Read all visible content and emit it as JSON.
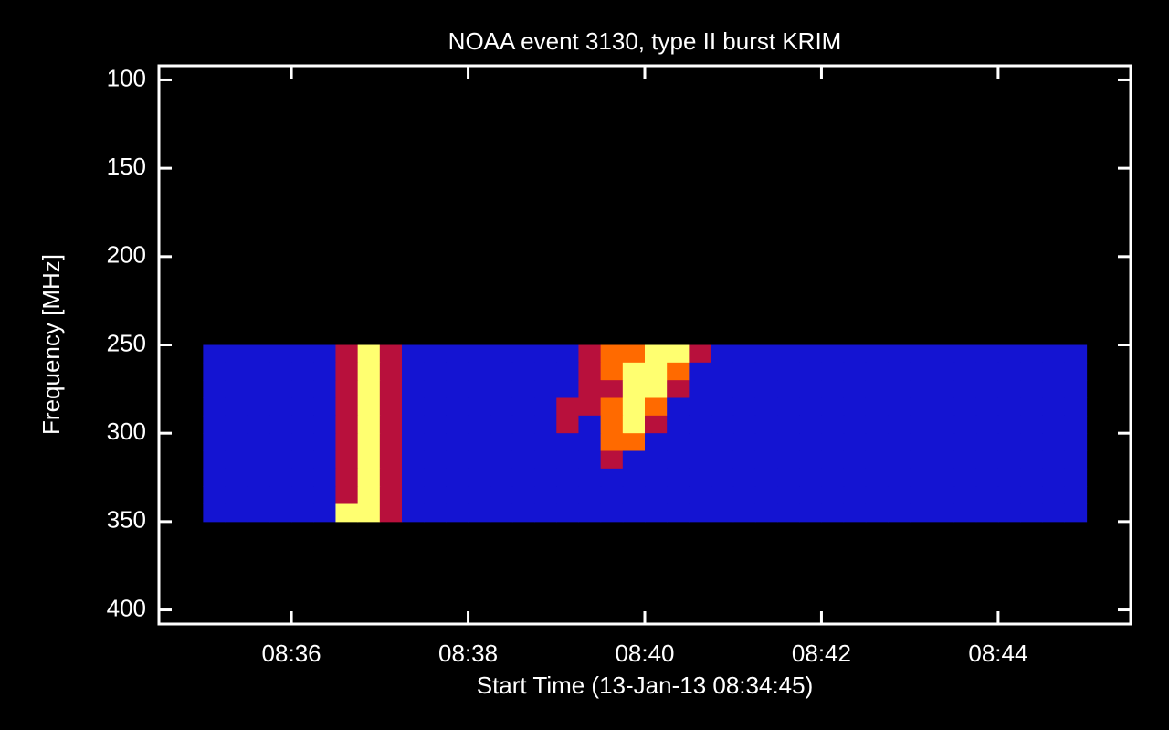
{
  "chart_data": {
    "type": "heatmap",
    "title": "NOAA event 3130, type II burst KRIM",
    "x_label": "Start Time (13-Jan-13 08:34:45)",
    "y_label": "Frequency [MHz]",
    "xlim": [
      34.5,
      45.5
    ],
    "xticks": [
      {
        "value": 36,
        "label": "08:36"
      },
      {
        "value": 38,
        "label": "08:38"
      },
      {
        "value": 40,
        "label": "08:40"
      },
      {
        "value": 42,
        "label": "08:42"
      },
      {
        "value": 44,
        "label": "08:44"
      }
    ],
    "ylim": [
      92,
      408
    ],
    "y_inverted": true,
    "yticks": [
      100,
      150,
      200,
      250,
      300,
      350,
      400
    ],
    "x_bins": [
      35,
      35.25,
      35.5,
      35.75,
      36,
      36.25,
      36.5,
      36.75,
      37,
      37.25,
      37.5,
      37.75,
      38,
      38.25,
      38.5,
      38.75,
      39,
      39.25,
      39.5,
      39.75,
      40,
      40.25,
      40.5,
      40.75,
      41,
      41.25,
      41.5,
      41.75,
      42,
      42.25,
      42.5,
      42.75,
      43,
      43.25,
      43.5,
      43.75,
      44,
      44.25,
      44.5,
      44.75,
      45
    ],
    "y_bins": [
      250,
      260,
      270,
      280,
      290,
      300,
      310,
      320,
      330,
      340,
      350
    ],
    "colors": [
      "#1414d2",
      "#b8103c",
      "#ff6a00",
      "#ffff70"
    ],
    "values": [
      [
        0,
        0,
        0,
        0,
        0,
        0,
        1,
        3,
        1,
        0,
        0,
        0,
        0,
        0,
        0,
        0,
        0,
        1,
        2,
        2,
        3,
        3,
        1,
        0,
        0,
        0,
        0,
        0,
        0,
        0,
        0,
        0,
        0,
        0,
        0,
        0,
        0,
        0,
        0,
        0
      ],
      [
        0,
        0,
        0,
        0,
        0,
        0,
        1,
        3,
        1,
        0,
        0,
        0,
        0,
        0,
        0,
        0,
        0,
        1,
        2,
        3,
        3,
        2,
        0,
        0,
        0,
        0,
        0,
        0,
        0,
        0,
        0,
        0,
        0,
        0,
        0,
        0,
        0,
        0,
        0,
        0
      ],
      [
        0,
        0,
        0,
        0,
        0,
        0,
        1,
        3,
        1,
        0,
        0,
        0,
        0,
        0,
        0,
        0,
        0,
        1,
        1,
        3,
        3,
        1,
        0,
        0,
        0,
        0,
        0,
        0,
        0,
        0,
        0,
        0,
        0,
        0,
        0,
        0,
        0,
        0,
        0,
        0
      ],
      [
        0,
        0,
        0,
        0,
        0,
        0,
        1,
        3,
        1,
        0,
        0,
        0,
        0,
        0,
        0,
        0,
        1,
        1,
        2,
        3,
        2,
        0,
        0,
        0,
        0,
        0,
        0,
        0,
        0,
        0,
        0,
        0,
        0,
        0,
        0,
        0,
        0,
        0,
        0,
        0
      ],
      [
        0,
        0,
        0,
        0,
        0,
        0,
        1,
        3,
        1,
        0,
        0,
        0,
        0,
        0,
        0,
        0,
        1,
        0,
        2,
        3,
        1,
        0,
        0,
        0,
        0,
        0,
        0,
        0,
        0,
        0,
        0,
        0,
        0,
        0,
        0,
        0,
        0,
        0,
        0,
        0
      ],
      [
        0,
        0,
        0,
        0,
        0,
        0,
        1,
        3,
        1,
        0,
        0,
        0,
        0,
        0,
        0,
        0,
        0,
        0,
        2,
        2,
        0,
        0,
        0,
        0,
        0,
        0,
        0,
        0,
        0,
        0,
        0,
        0,
        0,
        0,
        0,
        0,
        0,
        0,
        0,
        0
      ],
      [
        0,
        0,
        0,
        0,
        0,
        0,
        1,
        3,
        1,
        0,
        0,
        0,
        0,
        0,
        0,
        0,
        0,
        0,
        1,
        0,
        0,
        0,
        0,
        0,
        0,
        0,
        0,
        0,
        0,
        0,
        0,
        0,
        0,
        0,
        0,
        0,
        0,
        0,
        0,
        0
      ],
      [
        0,
        0,
        0,
        0,
        0,
        0,
        1,
        3,
        1,
        0,
        0,
        0,
        0,
        0,
        0,
        0,
        0,
        0,
        0,
        0,
        0,
        0,
        0,
        0,
        0,
        0,
        0,
        0,
        0,
        0,
        0,
        0,
        0,
        0,
        0,
        0,
        0,
        0,
        0,
        0
      ],
      [
        0,
        0,
        0,
        0,
        0,
        0,
        1,
        3,
        1,
        0,
        0,
        0,
        0,
        0,
        0,
        0,
        0,
        0,
        0,
        0,
        0,
        0,
        0,
        0,
        0,
        0,
        0,
        0,
        0,
        0,
        0,
        0,
        0,
        0,
        0,
        0,
        0,
        0,
        0,
        0
      ],
      [
        0,
        0,
        0,
        0,
        0,
        0,
        3,
        3,
        1,
        0,
        0,
        0,
        0,
        0,
        0,
        0,
        0,
        0,
        0,
        0,
        0,
        0,
        0,
        0,
        0,
        0,
        0,
        0,
        0,
        0,
        0,
        0,
        0,
        0,
        0,
        0,
        0,
        0,
        0,
        0
      ]
    ]
  }
}
